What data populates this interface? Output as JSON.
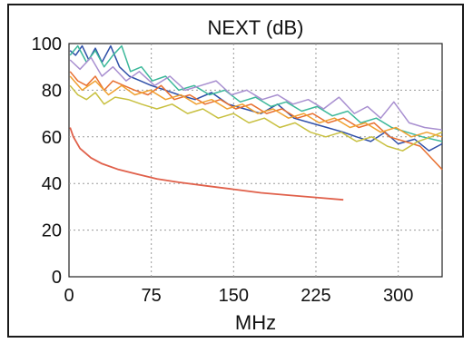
{
  "chart_data": {
    "type": "line",
    "title": "NEXT (dB)",
    "xlabel": "MHz",
    "ylabel": "",
    "xlim": [
      0,
      340
    ],
    "ylim": [
      0,
      100
    ],
    "xticks": [
      0,
      75,
      150,
      225,
      300
    ],
    "yticks": [
      0,
      20,
      40,
      60,
      80,
      100
    ],
    "grid": true,
    "series": [
      {
        "color": "#e0604a",
        "style": "limit",
        "x": [
          1,
          4,
          10,
          20,
          30,
          45,
          62,
          80,
          100,
          125,
          150,
          175,
          200,
          225,
          250
        ],
        "y": [
          64,
          60,
          55,
          51,
          48.5,
          46,
          44,
          42,
          40.5,
          39,
          37.5,
          36,
          35,
          34,
          33
        ]
      },
      {
        "color": "#2f4fa8",
        "x": [
          1,
          6,
          12,
          18,
          24,
          30,
          38,
          46,
          55,
          65,
          75,
          88,
          100,
          115,
          130,
          145,
          160,
          175,
          190,
          205,
          220,
          235,
          250,
          262,
          275,
          288,
          300,
          315,
          328,
          340
        ],
        "y": [
          97,
          95,
          99,
          93,
          98,
          92,
          99,
          90,
          86,
          84,
          82,
          80,
          78,
          76,
          79,
          74,
          72,
          70,
          74,
          68,
          66,
          64,
          62,
          60,
          58,
          62,
          57,
          59,
          54,
          57
        ]
      },
      {
        "color": "#3cb89a",
        "x": [
          1,
          8,
          16,
          24,
          32,
          40,
          48,
          56,
          66,
          76,
          88,
          100,
          114,
          128,
          142,
          156,
          170,
          184,
          198,
          212,
          226,
          240,
          254,
          266,
          280,
          294,
          308,
          322,
          340
        ],
        "y": [
          95,
          99,
          92,
          97,
          90,
          95,
          99,
          88,
          90,
          84,
          86,
          80,
          82,
          78,
          80,
          75,
          77,
          73,
          75,
          71,
          73,
          69,
          71,
          66,
          68,
          64,
          62,
          60,
          58
        ]
      },
      {
        "color": "#a88fd0",
        "x": [
          1,
          10,
          20,
          30,
          40,
          52,
          64,
          78,
          92,
          106,
          120,
          134,
          148,
          162,
          176,
          190,
          204,
          218,
          232,
          246,
          260,
          272,
          284,
          296,
          310,
          324,
          340
        ],
        "y": [
          93,
          89,
          94,
          86,
          90,
          84,
          88,
          82,
          86,
          80,
          82,
          84,
          78,
          80,
          76,
          78,
          74,
          76,
          72,
          77,
          70,
          73,
          68,
          75,
          66,
          64,
          63
        ]
      },
      {
        "color": "#e87030",
        "x": [
          1,
          8,
          16,
          24,
          32,
          40,
          50,
          60,
          72,
          84,
          96,
          110,
          124,
          138,
          152,
          166,
          180,
          194,
          208,
          222,
          236,
          250,
          264,
          278,
          292,
          306,
          320,
          332,
          340
        ],
        "y": [
          88,
          84,
          82,
          86,
          80,
          84,
          82,
          80,
          78,
          82,
          76,
          78,
          74,
          76,
          72,
          74,
          70,
          72,
          68,
          70,
          66,
          68,
          64,
          66,
          60,
          58,
          56,
          50,
          46
        ]
      },
      {
        "color": "#c8c040",
        "x": [
          1,
          8,
          16,
          24,
          32,
          42,
          54,
          66,
          80,
          94,
          108,
          122,
          136,
          150,
          164,
          178,
          192,
          206,
          220,
          234,
          248,
          262,
          276,
          290,
          304,
          318,
          330,
          340
        ],
        "y": [
          82,
          78,
          76,
          79,
          74,
          77,
          76,
          74,
          72,
          74,
          70,
          72,
          68,
          70,
          66,
          68,
          64,
          66,
          62,
          60,
          62,
          58,
          60,
          56,
          54,
          58,
          60,
          62
        ]
      },
      {
        "color": "#f0a030",
        "x": [
          1,
          12,
          24,
          36,
          48,
          60,
          74,
          88,
          102,
          116,
          130,
          144,
          158,
          172,
          186,
          200,
          214,
          228,
          242,
          256,
          270,
          284,
          298,
          312,
          326,
          340
        ],
        "y": [
          86,
          80,
          84,
          78,
          82,
          78,
          80,
          76,
          78,
          74,
          76,
          72,
          74,
          70,
          72,
          68,
          70,
          66,
          68,
          64,
          66,
          62,
          64,
          60,
          62,
          60
        ]
      }
    ]
  }
}
